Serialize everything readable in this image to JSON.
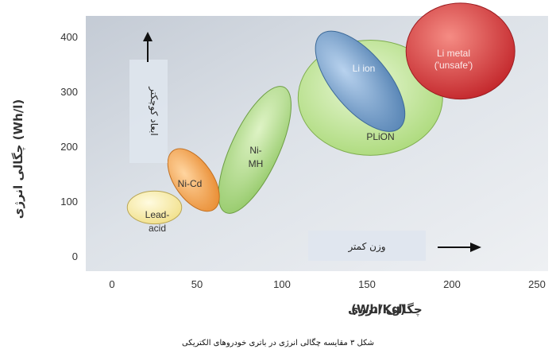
{
  "chart_data": {
    "type": "scatter",
    "title": "",
    "xlabel": "چگالی انرژی (Wh/Kg)",
    "ylabel": "چگالی انرژی (Wh/l)",
    "xlim": [
      0,
      250
    ],
    "ylim": [
      0,
      400
    ],
    "x_ticks": [
      "0",
      "50",
      "100",
      "150",
      "200",
      "250"
    ],
    "y_ticks": [
      "0",
      "100",
      "200",
      "300",
      "400"
    ],
    "grid": false,
    "series": [
      {
        "name": "Lead-acid",
        "x_range": [
          10,
          42
        ],
        "y_range": [
          60,
          120
        ],
        "center": [
          25,
          90
        ],
        "color": "#f6e9a8"
      },
      {
        "name": "Ni-Cd",
        "x_range": [
          32,
          66
        ],
        "y_range": [
          80,
          200
        ],
        "center": [
          48,
          140
        ],
        "color": "#f2a54e"
      },
      {
        "name": "Ni-MH",
        "x_range": [
          66,
          102
        ],
        "y_range": [
          85,
          305
        ],
        "center": [
          84,
          195
        ],
        "color": "#a9d67e"
      },
      {
        "name": "PLiON",
        "x_range": [
          110,
          195
        ],
        "y_range": [
          190,
          400
        ],
        "center": [
          152,
          290
        ],
        "color": "#b9e28a"
      },
      {
        "name": "Li ion",
        "x_range": [
          108,
          180
        ],
        "y_range": [
          245,
          392
        ],
        "center": [
          146,
          320
        ],
        "color": "#6e98c4"
      },
      {
        "name": "Li metal ('unsafe')",
        "x_range": [
          172,
          236
        ],
        "y_range": [
          275,
          450
        ],
        "center": [
          205,
          375
        ],
        "color": "#d6393b"
      }
    ],
    "annotations": [
      {
        "text": "ابعاد کوچکتر",
        "direction": "up"
      },
      {
        "text": "وزن کمتر",
        "direction": "right"
      }
    ]
  },
  "labels": {
    "lead_acid_line1": "Lead-",
    "lead_acid_line2": "acid",
    "ni_cd": "Ni-Cd",
    "ni_mh_line1": "Ni-",
    "ni_mh_line2": "MH",
    "li_ion": "Li ion",
    "plion": "PLiON",
    "li_metal_line1": "Li metal",
    "li_metal_line2": "('unsafe')",
    "smaller_size": "ابعاد کوچکتر",
    "lighter_weight": "وزن کمتر",
    "x_axis_fa": "چگالی انرژی",
    "x_axis_unit": "(Wh/Kg)",
    "y_axis_label": "چگالی انرژی (Wh/l)"
  },
  "caption": "شکل ۳ مقایسه چگالی انرژی در باتری خودروهای الکتریکی"
}
